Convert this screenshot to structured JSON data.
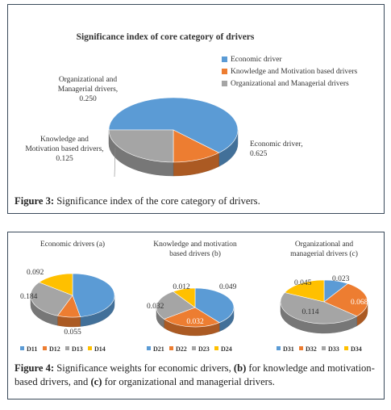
{
  "figure3": {
    "caption_label": "Figure 3:",
    "caption_text": " Significance index of the core category of drivers."
  },
  "figure4": {
    "caption_label": "Figure 4:",
    "caption_text_1": " Significance weights for economic drivers, ",
    "caption_b": "(b)",
    "caption_text_2": " for knowledge and motivation-based drivers, and ",
    "caption_c": "(c)",
    "caption_text_3": " for organizational and managerial drivers."
  },
  "chart_data": [
    {
      "type": "pie",
      "title": "Significance index of core category of drivers",
      "categories": [
        "Economic driver",
        "Knowledge and Motivation based drivers",
        "Organizational and Managerial drivers"
      ],
      "values": [
        0.625,
        0.125,
        0.25
      ],
      "data_labels": [
        "Economic driver,\n0.625",
        "Knowledge and\nMotivation based drivers,\n0.125",
        "Organizational and\nManagerial drivers,\n0.250"
      ],
      "colors": [
        "#5b9bd5",
        "#ed7d31",
        "#a5a5a5"
      ],
      "legend": "right"
    },
    {
      "type": "pie",
      "title": "Economic drivers (a)",
      "categories": [
        "D11",
        "D12",
        "D13",
        "D14"
      ],
      "values": [
        0.294,
        0.055,
        0.184,
        0.092
      ],
      "colors": [
        "#5b9bd5",
        "#ed7d31",
        "#a5a5a5",
        "#ffc000"
      ],
      "legend": "bottom"
    },
    {
      "type": "pie",
      "title": "Knowledge and motivation based drivers (b)",
      "categories": [
        "D21",
        "D22",
        "D23",
        "D24"
      ],
      "values": [
        0.049,
        0.032,
        0.032,
        0.012
      ],
      "colors": [
        "#5b9bd5",
        "#ed7d31",
        "#a5a5a5",
        "#ffc000"
      ],
      "legend": "bottom"
    },
    {
      "type": "pie",
      "title": "Organizational and managerial drivers (c)",
      "categories": [
        "D31",
        "D32",
        "D33",
        "D34"
      ],
      "values": [
        0.023,
        0.068,
        0.114,
        0.045
      ],
      "colors": [
        "#5b9bd5",
        "#ed7d31",
        "#a5a5a5",
        "#ffc000"
      ],
      "legend": "bottom"
    }
  ]
}
